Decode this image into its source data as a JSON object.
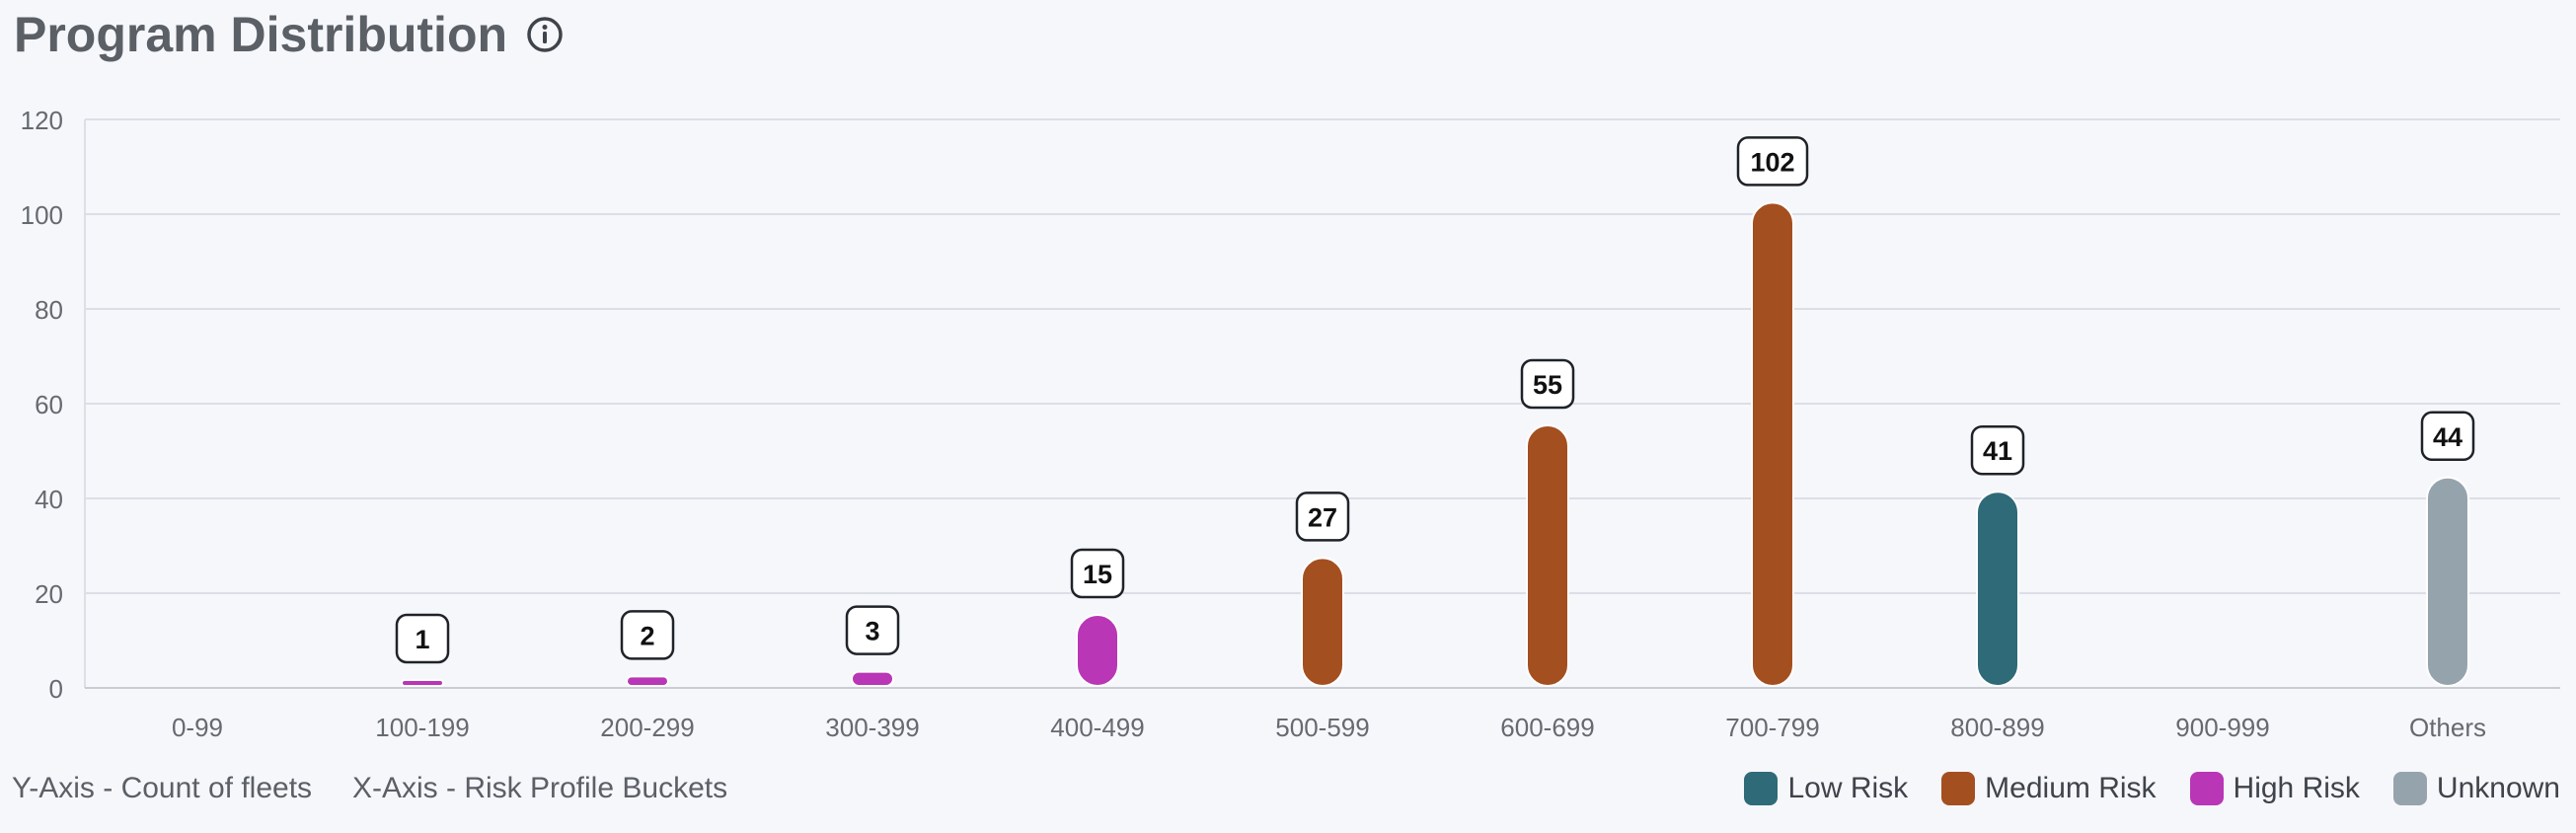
{
  "header": {
    "title": "Program Distribution",
    "info_icon": "info-circle-icon"
  },
  "axis_notes": {
    "y": "Y-Axis - Count of fleets",
    "x": "X-Axis - Risk Profile Buckets"
  },
  "legend": [
    {
      "label": "Low Risk",
      "color": "#2f6a78"
    },
    {
      "label": "Medium Risk",
      "color": "#a44f20"
    },
    {
      "label": "High Risk",
      "color": "#b936b6"
    },
    {
      "label": "Unknown",
      "color": "#95a3ac"
    }
  ],
  "chart_data": {
    "type": "bar",
    "categories": [
      "0-99",
      "100-199",
      "200-299",
      "300-399",
      "400-499",
      "500-599",
      "600-699",
      "700-799",
      "800-899",
      "900-999",
      "Others"
    ],
    "values": [
      0,
      1,
      2,
      3,
      15,
      27,
      55,
      102,
      41,
      0,
      44
    ],
    "data_labels": [
      "",
      "1",
      "2",
      "3",
      "15",
      "27",
      "55",
      "102",
      "41",
      "",
      "44"
    ],
    "risk": [
      "",
      "High Risk",
      "High Risk",
      "High Risk",
      "High Risk",
      "Medium Risk",
      "Medium Risk",
      "Medium Risk",
      "Low Risk",
      "",
      "Unknown"
    ],
    "ylim": [
      0,
      120
    ],
    "yticks": [
      "0",
      "20",
      "40",
      "60",
      "80",
      "100",
      "120"
    ],
    "grid": true
  }
}
